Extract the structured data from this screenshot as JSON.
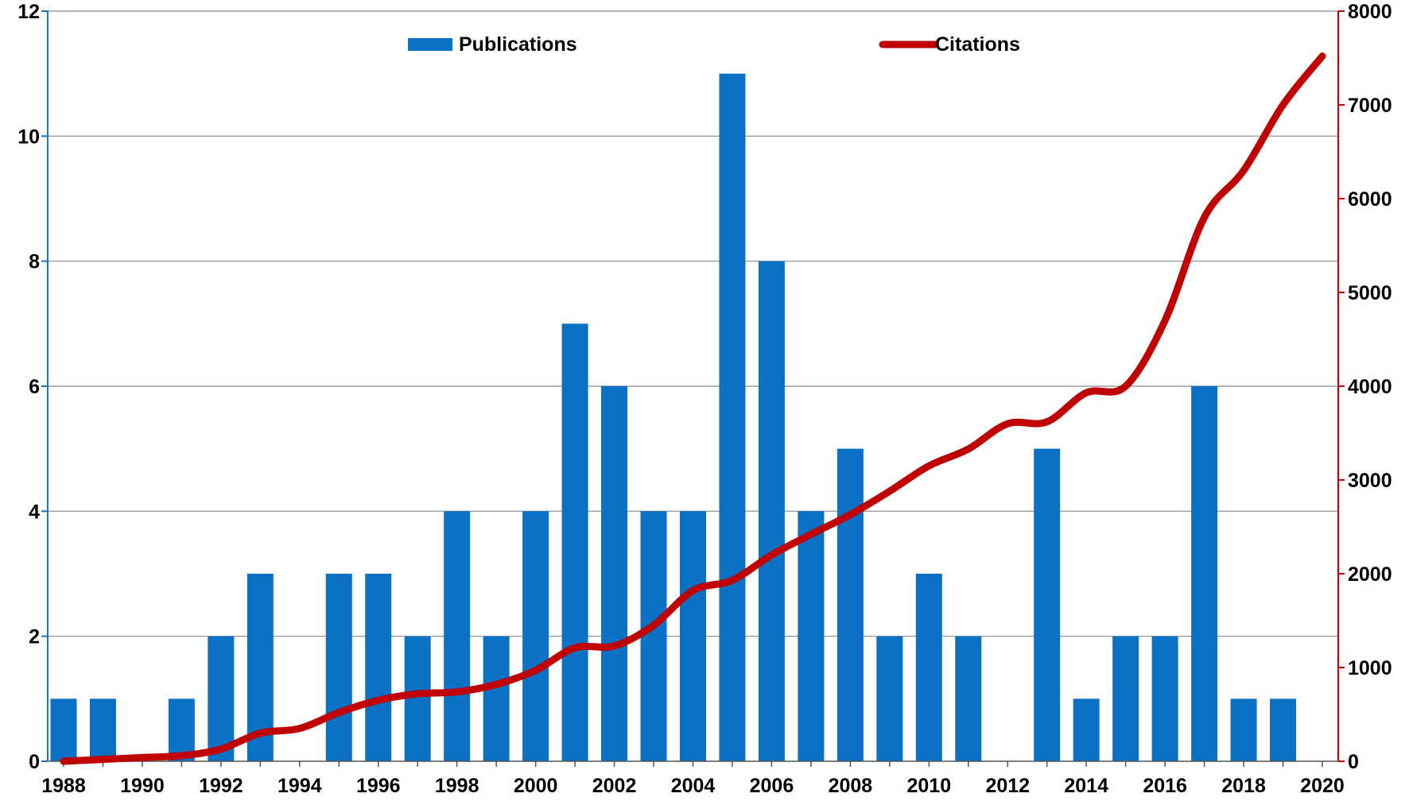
{
  "colors": {
    "bar": "#0B71C4",
    "line": "#C00000",
    "grid": "#8A8A8A",
    "left_axis": "#1A76C8",
    "right_axis": "#C00000"
  },
  "legend": {
    "publications_label": "Publications",
    "citations_label": "Citations"
  },
  "chart_data": {
    "type": "bar",
    "title": "",
    "xlabel": "",
    "ylabel": "",
    "x_tick_labels": [
      "1988",
      "1990",
      "1992",
      "1994",
      "1996",
      "1998",
      "2000",
      "2002",
      "2004",
      "2006",
      "2008",
      "2010",
      "2012",
      "2014",
      "2016",
      "2018",
      "2020"
    ],
    "left_ticks": [
      "0",
      "2",
      "4",
      "6",
      "8",
      "10",
      "12"
    ],
    "right_ticks": [
      "0",
      "1000",
      "2000",
      "3000",
      "4000",
      "5000",
      "6000",
      "7000",
      "8000"
    ],
    "ylim": [
      0,
      12
    ],
    "y2lim": [
      0,
      8000
    ],
    "grid": true,
    "legend_position": "top-center",
    "series": [
      {
        "name": "Publications",
        "type": "bar",
        "axis": "left",
        "x": [
          1988,
          1989,
          1990,
          1991,
          1992,
          1993,
          1994,
          1995,
          1996,
          1997,
          1998,
          1999,
          2000,
          2001,
          2002,
          2003,
          2004,
          2005,
          2006,
          2007,
          2008,
          2009,
          2010,
          2011,
          2012,
          2013,
          2014,
          2015,
          2016,
          2017,
          2018,
          2019
        ],
        "values": [
          1,
          1,
          0,
          1,
          2,
          3,
          0,
          3,
          3,
          2,
          4,
          2,
          4,
          7,
          6,
          4,
          4,
          11,
          8,
          4,
          5,
          2,
          3,
          2,
          0,
          5,
          1,
          2,
          2,
          6,
          1,
          1
        ]
      },
      {
        "name": "Citations",
        "type": "line",
        "axis": "right",
        "x": [
          1988,
          1989,
          1990,
          1991,
          1992,
          1993,
          1994,
          1995,
          1996,
          1997,
          1998,
          1999,
          2000,
          2001,
          2002,
          2003,
          2004,
          2005,
          2006,
          2007,
          2008,
          2009,
          2010,
          2011,
          2012,
          2013,
          2014,
          2015,
          2016,
          2017,
          2018,
          2019,
          2020
        ],
        "values": [
          0,
          20,
          40,
          60,
          130,
          300,
          350,
          520,
          650,
          720,
          740,
          820,
          970,
          1210,
          1230,
          1450,
          1820,
          1930,
          2200,
          2420,
          2630,
          2880,
          3150,
          3330,
          3600,
          3620,
          3930,
          4000,
          4700,
          5800,
          6300,
          7000,
          7520
        ]
      }
    ]
  }
}
